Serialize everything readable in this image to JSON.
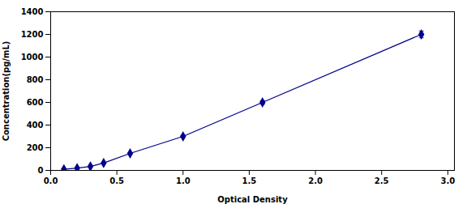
{
  "chart_data": {
    "type": "line",
    "x": [
      0.1,
      0.2,
      0.3,
      0.4,
      0.6,
      1.0,
      1.6,
      2.8
    ],
    "values": [
      10,
      20,
      35,
      65,
      150,
      300,
      600,
      1200
    ],
    "yerr": [
      0.25,
      0.5,
      0.875,
      1.625,
      3.75,
      7.5,
      15,
      30
    ],
    "color": "#00008B",
    "marker": "diamond",
    "xlabel": "Optical Density",
    "ylabel": "Concentration(pg/mL)",
    "xlim": [
      0,
      3.05
    ],
    "ylim": [
      0,
      1400
    ],
    "xticks": [
      {
        "value": 0,
        "label": "0.0"
      },
      {
        "value": 0.5,
        "label": "0.5"
      },
      {
        "value": 1,
        "label": "1.0"
      },
      {
        "value": 1.5,
        "label": "1.5"
      },
      {
        "value": 2,
        "label": "2.0"
      },
      {
        "value": 2.5,
        "label": "2.5"
      },
      {
        "value": 3,
        "label": "3.0"
      }
    ],
    "yticks": [
      0,
      200,
      400,
      600,
      800,
      1000,
      1200,
      1400
    ],
    "grid": false
  }
}
